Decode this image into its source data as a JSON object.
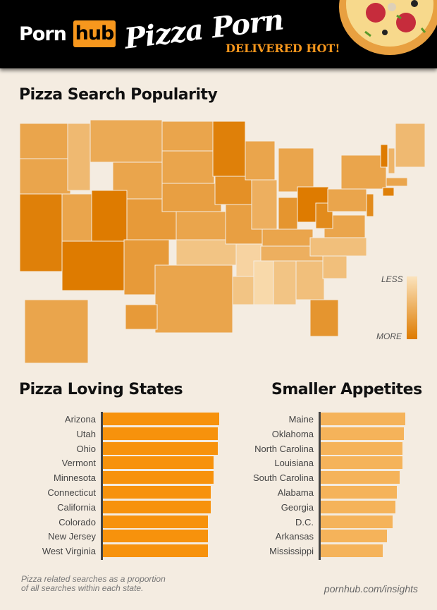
{
  "header": {
    "logo_left": "Porn",
    "logo_right": "hub",
    "title": "Pizza Porn",
    "tagline": "DELIVERED HOT!"
  },
  "map": {
    "title": "Pizza Search Popularity",
    "legend_less": "LESS",
    "legend_more": "MORE",
    "colors": {
      "less": "#fbe3bd",
      "more": "#de7b00"
    },
    "states": [
      {
        "s": "WA",
        "v": 0.6
      },
      {
        "s": "OR",
        "v": 0.6
      },
      {
        "s": "CA",
        "v": 0.95
      },
      {
        "s": "NV",
        "v": 0.6
      },
      {
        "s": "ID",
        "v": 0.4
      },
      {
        "s": "MT",
        "v": 0.55
      },
      {
        "s": "WY",
        "v": 0.6
      },
      {
        "s": "UT",
        "v": 1.0
      },
      {
        "s": "CO",
        "v": 0.7
      },
      {
        "s": "AZ",
        "v": 1.0
      },
      {
        "s": "NM",
        "v": 0.7
      },
      {
        "s": "ND",
        "v": 0.6
      },
      {
        "s": "SD",
        "v": 0.6
      },
      {
        "s": "NE",
        "v": 0.65
      },
      {
        "s": "KS",
        "v": 0.6
      },
      {
        "s": "OK",
        "v": 0.3
      },
      {
        "s": "TX",
        "v": 0.6
      },
      {
        "s": "MN",
        "v": 0.95
      },
      {
        "s": "IA",
        "v": 0.8
      },
      {
        "s": "MO",
        "v": 0.65
      },
      {
        "s": "AR",
        "v": 0.15
      },
      {
        "s": "LA",
        "v": 0.3
      },
      {
        "s": "WI",
        "v": 0.6
      },
      {
        "s": "IL",
        "v": 0.5
      },
      {
        "s": "MI",
        "v": 0.6
      },
      {
        "s": "IN",
        "v": 0.75
      },
      {
        "s": "OH",
        "v": 1.0
      },
      {
        "s": "KY",
        "v": 0.6
      },
      {
        "s": "TN",
        "v": 0.5
      },
      {
        "s": "MS",
        "v": 0.1
      },
      {
        "s": "AL",
        "v": 0.3
      },
      {
        "s": "GA",
        "v": 0.35
      },
      {
        "s": "FL",
        "v": 0.75
      },
      {
        "s": "SC",
        "v": 0.35
      },
      {
        "s": "NC",
        "v": 0.35
      },
      {
        "s": "VA",
        "v": 0.6
      },
      {
        "s": "WV",
        "v": 0.85
      },
      {
        "s": "PA",
        "v": 0.6
      },
      {
        "s": "NY",
        "v": 0.6
      },
      {
        "s": "NJ",
        "v": 0.85
      },
      {
        "s": "VT",
        "v": 1.0
      },
      {
        "s": "NH",
        "v": 0.45
      },
      {
        "s": "ME",
        "v": 0.4
      },
      {
        "s": "MA",
        "v": 0.6
      },
      {
        "s": "CT",
        "v": 0.95
      },
      {
        "s": "AK",
        "v": 0.6
      },
      {
        "s": "HI",
        "v": 0.7
      }
    ]
  },
  "chart_data": [
    {
      "type": "bar",
      "title": "Pizza Loving States",
      "color": "#f7920c",
      "categories": [
        "Arizona",
        "Utah",
        "Ohio",
        "Vermont",
        "Minnesota",
        "Connecticut",
        "California",
        "Colorado",
        "New Jersey",
        "West Virginia"
      ],
      "values": [
        165,
        163,
        163,
        157,
        157,
        153,
        153,
        149,
        149,
        149
      ]
    },
    {
      "type": "bar",
      "title": "Smaller Appetites",
      "color": "#f5b35a",
      "categories": [
        "Maine",
        "Oklahoma",
        "North Carolina",
        "Louisiana",
        "South Carolina",
        "Alabama",
        "Georgia",
        "D.C.",
        "Arkansas",
        "Mississippi"
      ],
      "values": [
        120,
        118,
        116,
        116,
        112,
        108,
        106,
        102,
        94,
        88
      ]
    }
  ],
  "footer": {
    "note_line1": "Pizza related searches as a proportion",
    "note_line2": "of all searches within each state.",
    "source": "pornhub.com/insights"
  }
}
